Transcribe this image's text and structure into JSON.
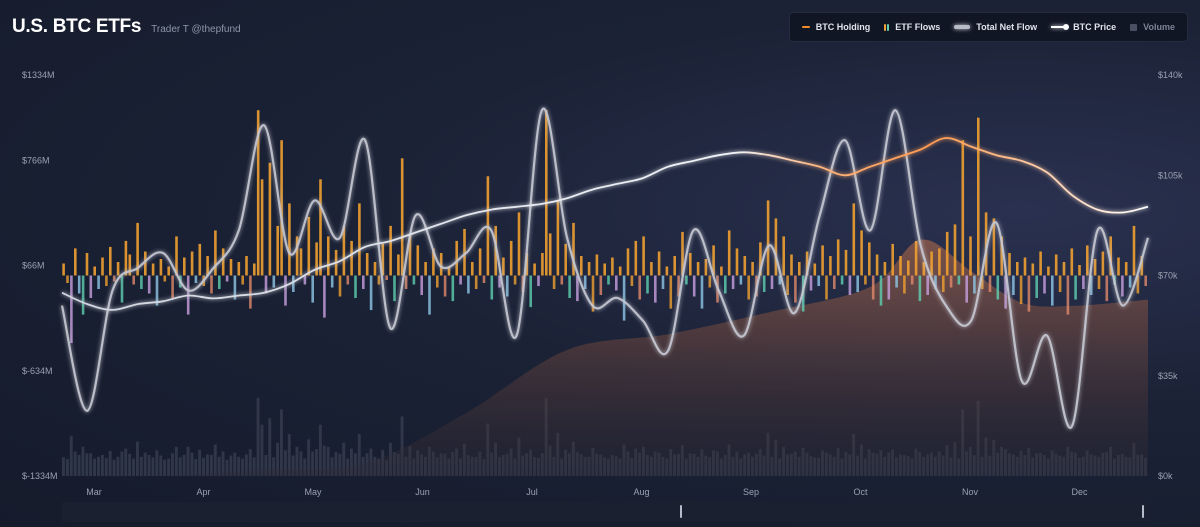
{
  "header": {
    "title": "U.S. BTC ETFs",
    "subtitle": "Trader T @thepfund"
  },
  "legend": [
    {
      "label": "BTC Holding",
      "swatch": "line",
      "color": "#f28b2a"
    },
    {
      "label": "ETF Flows",
      "swatch": "bars",
      "colors": [
        "#f0a23a",
        "#5fd0b0"
      ]
    },
    {
      "label": "Total Net Flow",
      "swatch": "wide",
      "color": "#c4c7d1"
    },
    {
      "label": "BTC Price",
      "swatch": "price",
      "color": "#ffffff"
    },
    {
      "label": "Volume",
      "swatch": "vol",
      "color": "#4a5063"
    }
  ],
  "chart_data": {
    "type": "line",
    "y_left": {
      "ticks": [
        "$1334M",
        "$766M",
        "$66M",
        "$-634M",
        "$-1334M"
      ],
      "range": [
        -1334,
        1334
      ]
    },
    "y_right": {
      "ticks": [
        "$140k",
        "$105k",
        "$70k",
        "$35k",
        "$0k"
      ],
      "range": [
        0,
        140000
      ]
    },
    "x_axis": {
      "ticks": [
        "Mar",
        "Apr",
        "May",
        "Jun",
        "Jul",
        "Aug",
        "Sep",
        "Oct",
        "Nov",
        "Dec"
      ]
    },
    "colors": {
      "inflow": "#f0a030",
      "outflow_palette": [
        "#5fd0b0",
        "#f0a030",
        "#c9a0e0",
        "#e08a6a",
        "#8ec8e8"
      ],
      "holding": "#f28b2a",
      "net_flow": "#c6c9d3",
      "price": "#ffffff",
      "volume": "#3a4052"
    },
    "series": [
      {
        "name": "BTC Price",
        "x": [
          0,
          1,
          2,
          3,
          4,
          5,
          6,
          7,
          8,
          9,
          10,
          11,
          12,
          13,
          14,
          15,
          16,
          17,
          18,
          19,
          20,
          21,
          22,
          23,
          24,
          25,
          26,
          27,
          28,
          29,
          30,
          31,
          32,
          33,
          34,
          35,
          36,
          37,
          38,
          39,
          40,
          41,
          42,
          43
        ],
        "values": [
          64000,
          60000,
          58000,
          60000,
          61000,
          63000,
          62000,
          63000,
          64000,
          67000,
          72000,
          75000,
          80000,
          82000,
          85000,
          88000,
          91000,
          93000,
          94000,
          95000,
          97000,
          100000,
          102000,
          104000,
          108000,
          110000,
          112000,
          113000,
          112000,
          110000,
          108000,
          105000,
          108000,
          111000,
          114000,
          118000,
          115000,
          112000,
          110000,
          106000,
          98000,
          93000,
          92000,
          94000
        ]
      },
      {
        "name": "Total Net Flow",
        "x": [
          0,
          1,
          2,
          3,
          4,
          5,
          6,
          7,
          8,
          9,
          10,
          11,
          12,
          13,
          14,
          15,
          16,
          17,
          18,
          19,
          20,
          21,
          22,
          23,
          24,
          25,
          26,
          27,
          28,
          29,
          30,
          31,
          32,
          33,
          34,
          35,
          36,
          37,
          38,
          39,
          40,
          41,
          42,
          43
        ],
        "values": [
          -200,
          -900,
          -100,
          50,
          150,
          -100,
          50,
          300,
          1000,
          150,
          500,
          250,
          900,
          -350,
          400,
          60,
          150,
          300,
          -400,
          1100,
          250,
          -200,
          -150,
          -300,
          -500,
          300,
          -100,
          -400,
          200,
          -250,
          400,
          900,
          300,
          1100,
          200,
          -200,
          -300,
          350,
          -700,
          -400,
          -1000,
          300,
          -200,
          250
        ]
      },
      {
        "name": "BTC Holding",
        "x": [
          0,
          4,
          8,
          12,
          16,
          20,
          24,
          28,
          32,
          34,
          36,
          38,
          40,
          43
        ],
        "values": [
          0,
          0,
          2000,
          4000,
          20000,
          40000,
          45000,
          52000,
          60000,
          75000,
          65000,
          55000,
          54000,
          56000
        ]
      }
    ],
    "etf_flows_daily": [
      80,
      -50,
      -450,
      180,
      -120,
      -260,
      150,
      -150,
      60,
      -90,
      120,
      -70,
      190,
      -40,
      90,
      -180,
      230,
      140,
      -60,
      350,
      -90,
      160,
      -120,
      80,
      -200,
      110,
      -40,
      60,
      -150,
      260,
      -80,
      120,
      -260,
      160,
      -50,
      210,
      -70,
      130,
      -120,
      300,
      -90,
      180,
      -40,
      110,
      -160,
      90,
      -60,
      130,
      -220,
      80,
      1100,
      640,
      -120,
      750,
      -80,
      330,
      900,
      -200,
      480,
      -110,
      260,
      180,
      -60,
      390,
      -180,
      220,
      640,
      -280,
      260,
      -80,
      170,
      -140,
      330,
      -60,
      230,
      -150,
      480,
      -90,
      150,
      -230,
      90,
      -60,
      210,
      -30,
      330,
      -170,
      140,
      780,
      -90,
      270,
      -60,
      200,
      -130,
      90,
      -260,
      180,
      -80,
      150,
      -140,
      60,
      -170,
      230,
      -60,
      310,
      -120,
      90,
      -90,
      180,
      -50,
      660,
      -160,
      330,
      -80,
      120,
      -140,
      230,
      -60,
      420,
      -110,
      150,
      -210,
      80,
      -70,
      150,
      1100,
      280,
      -90,
      500,
      -60,
      210,
      -150,
      350,
      -170,
      130,
      -90,
      90,
      -240,
      140,
      -130,
      80,
      -60,
      120,
      -100,
      60,
      -300,
      180,
      -70,
      230,
      -160,
      260,
      -120,
      90,
      -180,
      160,
      -90,
      60,
      -220,
      130,
      -140,
      290,
      -60,
      150,
      -140,
      90,
      -220,
      110,
      -80,
      200,
      -180,
      60,
      -120,
      300,
      -90,
      180,
      -60,
      130,
      -160,
      90,
      -140,
      220,
      -110,
      500,
      -90,
      380,
      -60,
      260,
      -130,
      140,
      -180,
      90,
      -240,
      160,
      -100,
      80,
      -70,
      200,
      -160,
      130,
      -90,
      240,
      -60,
      170,
      -130,
      480,
      -110,
      300,
      -60,
      220,
      -160,
      140,
      -200,
      90,
      -160,
      210,
      -80,
      130,
      -120,
      100,
      -60,
      230,
      -170,
      90,
      -130,
      160,
      -90,
      180,
      -110,
      290,
      -80,
      340,
      -60,
      900,
      -180,
      260,
      -120,
      1050,
      -90,
      420,
      -110,
      380,
      -160,
      260,
      -220,
      150,
      -130,
      90,
      -190,
      120,
      -240,
      80,
      -150,
      160,
      -120,
      60,
      -200,
      140,
      -110,
      90,
      -260,
      180,
      -160,
      70,
      -90,
      200,
      -130,
      110,
      -90,
      160,
      -170,
      260,
      -60,
      120,
      -140,
      90,
      -80,
      330,
      -120,
      130,
      -70
    ]
  }
}
